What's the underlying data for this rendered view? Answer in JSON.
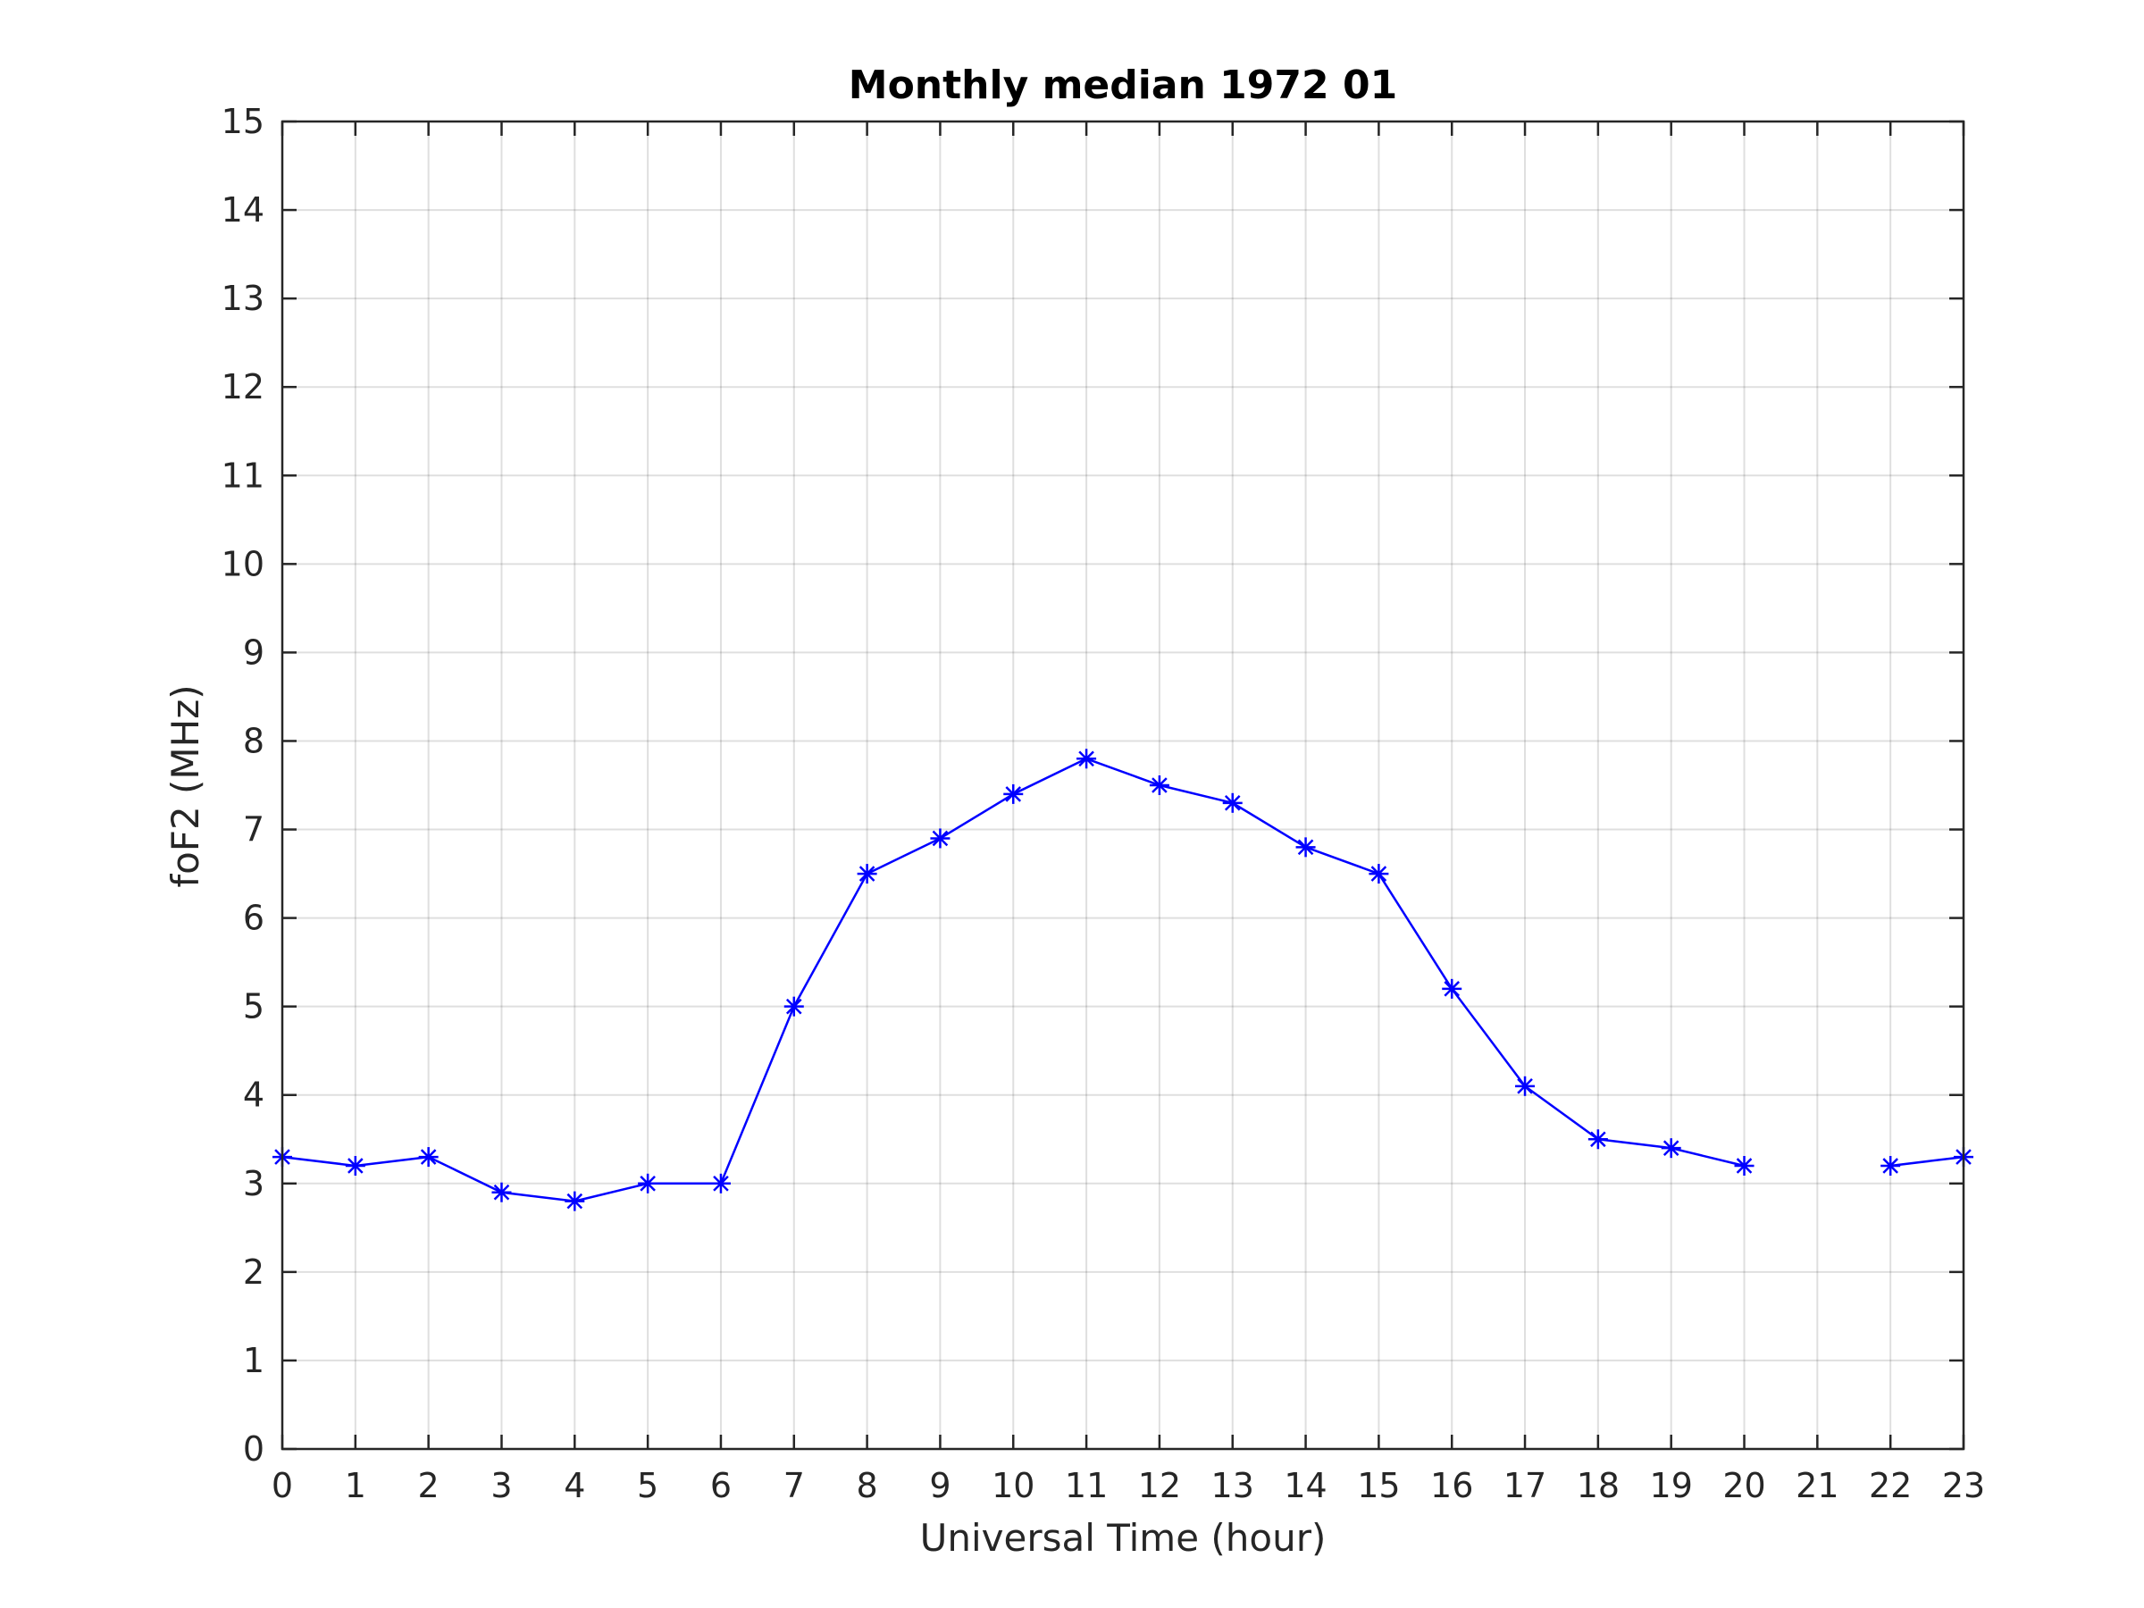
{
  "chart_data": {
    "type": "line",
    "title": "Monthly median 1972 01",
    "xlabel": "Universal Time (hour)",
    "ylabel": "foF2 (MHz)",
    "xlim": [
      0,
      23
    ],
    "ylim": [
      0,
      15
    ],
    "x_ticks": [
      0,
      1,
      2,
      3,
      4,
      5,
      6,
      7,
      8,
      9,
      10,
      11,
      12,
      13,
      14,
      15,
      16,
      17,
      18,
      19,
      20,
      21,
      22,
      23
    ],
    "y_ticks": [
      0,
      1,
      2,
      3,
      4,
      5,
      6,
      7,
      8,
      9,
      10,
      11,
      12,
      13,
      14,
      15
    ],
    "grid": true,
    "legend": "none",
    "marker": "asterisk",
    "series": [
      {
        "color": "#0000ff",
        "x": [
          0,
          1,
          2,
          3,
          4,
          5,
          6,
          7,
          8,
          9,
          10,
          11,
          12,
          13,
          14,
          15,
          16,
          17,
          18,
          19,
          20,
          21,
          22,
          23
        ],
        "values": [
          3.3,
          3.2,
          3.3,
          2.9,
          2.8,
          3.0,
          3.0,
          5.0,
          6.5,
          6.9,
          7.4,
          7.8,
          7.5,
          7.3,
          6.8,
          6.5,
          5.2,
          4.1,
          3.5,
          3.4,
          3.2,
          null,
          3.2,
          3.3
        ]
      }
    ]
  }
}
